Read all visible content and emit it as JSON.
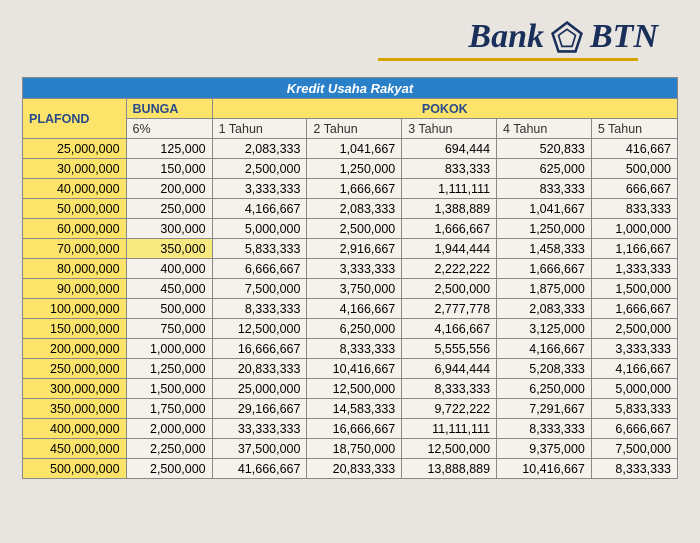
{
  "logo": {
    "bank_text": "Bank",
    "btn_text": "BTN",
    "icon_color": "#1a2f5a"
  },
  "table": {
    "title": "Kredit Usaha Rakyat",
    "headers": {
      "plafond": "PLAFOND",
      "bunga": "BUNGA",
      "pokok": "POKOK",
      "bunga_pct": "6%",
      "year1": "1 Tahun",
      "year2": "2 Tahun",
      "year3": "3 Tahun",
      "year4": "4 Tahun",
      "year5": "5 Tahun"
    },
    "rows": [
      {
        "plafond": "25,000,000",
        "bunga": "125,000",
        "y1": "2,083,333",
        "y2": "1,041,667",
        "y3": "694,444",
        "y4": "520,833",
        "y5": "416,667"
      },
      {
        "plafond": "30,000,000",
        "bunga": "150,000",
        "y1": "2,500,000",
        "y2": "1,250,000",
        "y3": "833,333",
        "y4": "625,000",
        "y5": "500,000"
      },
      {
        "plafond": "40,000,000",
        "bunga": "200,000",
        "y1": "3,333,333",
        "y2": "1,666,667",
        "y3": "1,111,111",
        "y4": "833,333",
        "y5": "666,667"
      },
      {
        "plafond": "50,000,000",
        "bunga": "250,000",
        "y1": "4,166,667",
        "y2": "2,083,333",
        "y3": "1,388,889",
        "y4": "1,041,667",
        "y5": "833,333"
      },
      {
        "plafond": "60,000,000",
        "bunga": "300,000",
        "y1": "5,000,000",
        "y2": "2,500,000",
        "y3": "1,666,667",
        "y4": "1,250,000",
        "y5": "1,000,000"
      },
      {
        "plafond": "70,000,000",
        "bunga": "350,000",
        "y1": "5,833,333",
        "y2": "2,916,667",
        "y3": "1,944,444",
        "y4": "1,458,333",
        "y5": "1,166,667"
      },
      {
        "plafond": "80,000,000",
        "bunga": "400,000",
        "y1": "6,666,667",
        "y2": "3,333,333",
        "y3": "2,222,222",
        "y4": "1,666,667",
        "y5": "1,333,333"
      },
      {
        "plafond": "90,000,000",
        "bunga": "450,000",
        "y1": "7,500,000",
        "y2": "3,750,000",
        "y3": "2,500,000",
        "y4": "1,875,000",
        "y5": "1,500,000"
      },
      {
        "plafond": "100,000,000",
        "bunga": "500,000",
        "y1": "8,333,333",
        "y2": "4,166,667",
        "y3": "2,777,778",
        "y4": "2,083,333",
        "y5": "1,666,667"
      },
      {
        "plafond": "150,000,000",
        "bunga": "750,000",
        "y1": "12,500,000",
        "y2": "6,250,000",
        "y3": "4,166,667",
        "y4": "3,125,000",
        "y5": "2,500,000"
      },
      {
        "plafond": "200,000,000",
        "bunga": "1,000,000",
        "y1": "16,666,667",
        "y2": "8,333,333",
        "y3": "5,555,556",
        "y4": "4,166,667",
        "y5": "3,333,333"
      },
      {
        "plafond": "250,000,000",
        "bunga": "1,250,000",
        "y1": "20,833,333",
        "y2": "10,416,667",
        "y3": "6,944,444",
        "y4": "5,208,333",
        "y5": "4,166,667"
      },
      {
        "plafond": "300,000,000",
        "bunga": "1,500,000",
        "y1": "25,000,000",
        "y2": "12,500,000",
        "y3": "8,333,333",
        "y4": "6,250,000",
        "y5": "5,000,000"
      },
      {
        "plafond": "350,000,000",
        "bunga": "1,750,000",
        "y1": "29,166,667",
        "y2": "14,583,333",
        "y3": "9,722,222",
        "y4": "7,291,667",
        "y5": "5,833,333"
      },
      {
        "plafond": "400,000,000",
        "bunga": "2,000,000",
        "y1": "33,333,333",
        "y2": "16,666,667",
        "y3": "11,111,111",
        "y4": "8,333,333",
        "y5": "6,666,667"
      },
      {
        "plafond": "450,000,000",
        "bunga": "2,250,000",
        "y1": "37,500,000",
        "y2": "18,750,000",
        "y3": "12,500,000",
        "y4": "9,375,000",
        "y5": "7,500,000"
      },
      {
        "plafond": "500,000,000",
        "bunga": "2,500,000",
        "y1": "41,666,667",
        "y2": "20,833,333",
        "y3": "13,888,889",
        "y4": "10,416,667",
        "y5": "8,333,333"
      }
    ]
  },
  "colors": {
    "title_bg": "#2a7fc9",
    "header_bg": "#fce46a",
    "header_text": "#2a4a8a",
    "border": "#888888",
    "page_bg": "#e8e5e0",
    "cell_bg": "#f5f2ec"
  }
}
